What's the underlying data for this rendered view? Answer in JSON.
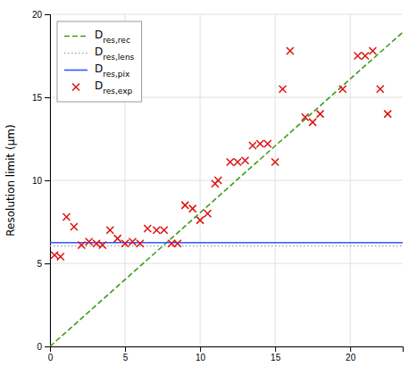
{
  "chart_data": {
    "type": "line",
    "ylabel": "Resolution limit (μm)",
    "xlim": [
      0,
      23.5
    ],
    "ylim": [
      0,
      20
    ],
    "xticks": [
      0,
      5,
      10,
      15,
      20
    ],
    "yticks": [
      0,
      5,
      10,
      15,
      20
    ],
    "grid": true,
    "legend": "upper left",
    "series": [
      {
        "name": "Dres,rec",
        "type": "line",
        "line_style": "dashed",
        "color": "#3e9c1a",
        "x": [
          0,
          23.5
        ],
        "values": [
          0,
          18.9175
        ]
      },
      {
        "name": "Dres,lens",
        "type": "line",
        "line_style": "dotted",
        "color": "#aaaaaa",
        "x": [
          0,
          23.5
        ],
        "values": [
          6.05,
          6.05
        ]
      },
      {
        "name": "Dres,pix",
        "type": "line",
        "line_style": "solid",
        "color": "#3355ff",
        "x": [
          0,
          23.5
        ],
        "values": [
          6.25,
          6.25
        ]
      },
      {
        "name": "Dres,exp",
        "type": "scatter",
        "marker": "x",
        "color": "#dd1111",
        "x": [
          0.3,
          0.7,
          1.1,
          1.6,
          2.1,
          2.6,
          3.1,
          3.5,
          4.0,
          4.5,
          5.0,
          5.5,
          6.0,
          6.5,
          7.1,
          7.6,
          8.1,
          8.5,
          9.0,
          9.5,
          10.0,
          10.5,
          11.0,
          11.2,
          12.0,
          12.5,
          13.0,
          13.5,
          14.0,
          14.5,
          15.0,
          15.5,
          16.0,
          17.0,
          17.5,
          18.0,
          19.5,
          20.5,
          21.0,
          21.5,
          22.0,
          22.5
        ],
        "values": [
          5.5,
          5.4,
          7.8,
          7.2,
          6.1,
          6.3,
          6.2,
          6.1,
          7.0,
          6.5,
          6.2,
          6.3,
          6.2,
          7.1,
          7.0,
          7.0,
          6.2,
          6.2,
          8.5,
          8.3,
          7.6,
          8.0,
          9.8,
          10.0,
          11.1,
          11.1,
          11.2,
          12.1,
          12.2,
          12.2,
          11.1,
          15.5,
          17.8,
          13.8,
          13.5,
          14.0,
          15.5,
          17.5,
          17.5,
          17.8,
          15.5,
          14.0
        ]
      }
    ]
  }
}
